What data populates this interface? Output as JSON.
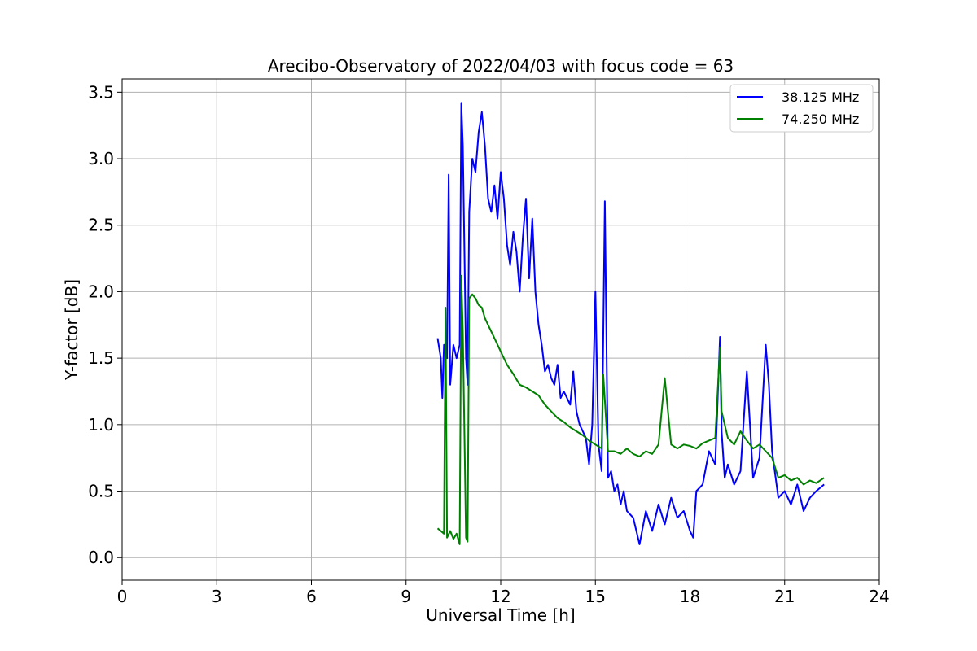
{
  "chart_data": {
    "type": "line",
    "title": "Arecibo-Observatory of 2022/04/03 with focus code = 63",
    "xlabel": "Universal Time [h]",
    "ylabel": "Y-factor [dB]",
    "xlim": [
      0,
      24
    ],
    "ylim": [
      -0.17,
      3.6
    ],
    "x_ticks": [
      0,
      3,
      6,
      9,
      12,
      15,
      18,
      21,
      24
    ],
    "x_tick_labels": [
      "0",
      "3",
      "6",
      "9",
      "12",
      "15",
      "18",
      "21",
      "24"
    ],
    "y_ticks": [
      0.0,
      0.5,
      1.0,
      1.5,
      2.0,
      2.5,
      3.0,
      3.5
    ],
    "y_tick_labels": [
      "0.0",
      "0.5",
      "1.0",
      "1.5",
      "2.0",
      "2.5",
      "3.0",
      "3.5"
    ],
    "grid": true,
    "legend_position": "top-right",
    "series": [
      {
        "name": "38.125 MHz",
        "color": "#0000ff",
        "x": [
          10.0,
          10.1,
          10.15,
          10.2,
          10.3,
          10.35,
          10.4,
          10.5,
          10.6,
          10.7,
          10.75,
          10.8,
          10.9,
          10.95,
          11.0,
          11.1,
          11.2,
          11.3,
          11.4,
          11.5,
          11.6,
          11.7,
          11.8,
          11.9,
          12.0,
          12.1,
          12.2,
          12.3,
          12.4,
          12.5,
          12.6,
          12.7,
          12.8,
          12.9,
          13.0,
          13.1,
          13.2,
          13.3,
          13.4,
          13.5,
          13.6,
          13.7,
          13.8,
          13.9,
          14.0,
          14.1,
          14.2,
          14.3,
          14.4,
          14.5,
          14.6,
          14.7,
          14.8,
          14.9,
          15.0,
          15.1,
          15.2,
          15.3,
          15.4,
          15.5,
          15.6,
          15.7,
          15.8,
          15.9,
          16.0,
          16.2,
          16.4,
          16.6,
          16.8,
          17.0,
          17.2,
          17.4,
          17.6,
          17.8,
          18.0,
          18.1,
          18.2,
          18.4,
          18.6,
          18.8,
          18.95,
          19.0,
          19.1,
          19.2,
          19.4,
          19.6,
          19.8,
          20.0,
          20.2,
          20.4,
          20.5,
          20.6,
          20.8,
          21.0,
          21.2,
          21.4,
          21.6,
          21.8,
          22.0,
          22.25
        ],
        "y": [
          1.65,
          1.5,
          1.2,
          1.6,
          1.5,
          2.88,
          1.3,
          1.6,
          1.5,
          1.6,
          3.42,
          3.1,
          1.5,
          1.3,
          2.6,
          3.0,
          2.9,
          3.2,
          3.35,
          3.1,
          2.7,
          2.6,
          2.8,
          2.55,
          2.9,
          2.7,
          2.35,
          2.2,
          2.45,
          2.3,
          2.0,
          2.4,
          2.7,
          2.1,
          2.55,
          2.0,
          1.75,
          1.6,
          1.4,
          1.45,
          1.35,
          1.3,
          1.45,
          1.2,
          1.25,
          1.2,
          1.15,
          1.4,
          1.1,
          1.0,
          0.95,
          0.9,
          0.7,
          1.0,
          2.0,
          0.85,
          0.65,
          2.68,
          0.6,
          0.65,
          0.5,
          0.55,
          0.4,
          0.5,
          0.35,
          0.3,
          0.1,
          0.35,
          0.2,
          0.4,
          0.25,
          0.45,
          0.3,
          0.35,
          0.2,
          0.15,
          0.5,
          0.55,
          0.8,
          0.7,
          1.66,
          0.95,
          0.6,
          0.7,
          0.55,
          0.65,
          1.4,
          0.6,
          0.75,
          1.6,
          1.3,
          0.8,
          0.45,
          0.5,
          0.4,
          0.55,
          0.35,
          0.45,
          0.5,
          0.55
        ]
      },
      {
        "name": "74.250 MHz",
        "color": "#008000",
        "x": [
          10.0,
          10.1,
          10.2,
          10.25,
          10.3,
          10.4,
          10.5,
          10.6,
          10.7,
          10.75,
          10.8,
          10.9,
          10.95,
          11.0,
          11.1,
          11.2,
          11.3,
          11.4,
          11.5,
          11.6,
          11.8,
          12.0,
          12.2,
          12.4,
          12.6,
          12.8,
          13.0,
          13.2,
          13.4,
          13.6,
          13.8,
          14.0,
          14.2,
          14.4,
          14.6,
          14.8,
          15.0,
          15.2,
          15.25,
          15.4,
          15.6,
          15.8,
          16.0,
          16.2,
          16.4,
          16.6,
          16.8,
          17.0,
          17.2,
          17.4,
          17.6,
          17.8,
          18.0,
          18.2,
          18.4,
          18.6,
          18.8,
          18.95,
          19.0,
          19.2,
          19.4,
          19.6,
          19.8,
          20.0,
          20.2,
          20.4,
          20.6,
          20.8,
          21.0,
          21.2,
          21.4,
          21.6,
          21.8,
          22.0,
          22.25
        ],
        "y": [
          0.22,
          0.2,
          0.18,
          1.88,
          0.15,
          0.2,
          0.14,
          0.18,
          0.1,
          2.12,
          1.7,
          0.15,
          0.12,
          1.95,
          1.98,
          1.95,
          1.9,
          1.88,
          1.8,
          1.75,
          1.65,
          1.55,
          1.45,
          1.38,
          1.3,
          1.28,
          1.25,
          1.22,
          1.15,
          1.1,
          1.05,
          1.02,
          0.98,
          0.95,
          0.92,
          0.88,
          0.85,
          0.82,
          1.38,
          0.8,
          0.8,
          0.78,
          0.82,
          0.78,
          0.76,
          0.8,
          0.78,
          0.85,
          1.35,
          0.85,
          0.82,
          0.85,
          0.84,
          0.82,
          0.86,
          0.88,
          0.9,
          1.58,
          1.1,
          0.9,
          0.85,
          0.95,
          0.88,
          0.82,
          0.85,
          0.8,
          0.75,
          0.6,
          0.62,
          0.58,
          0.6,
          0.55,
          0.58,
          0.56,
          0.6
        ]
      }
    ]
  }
}
